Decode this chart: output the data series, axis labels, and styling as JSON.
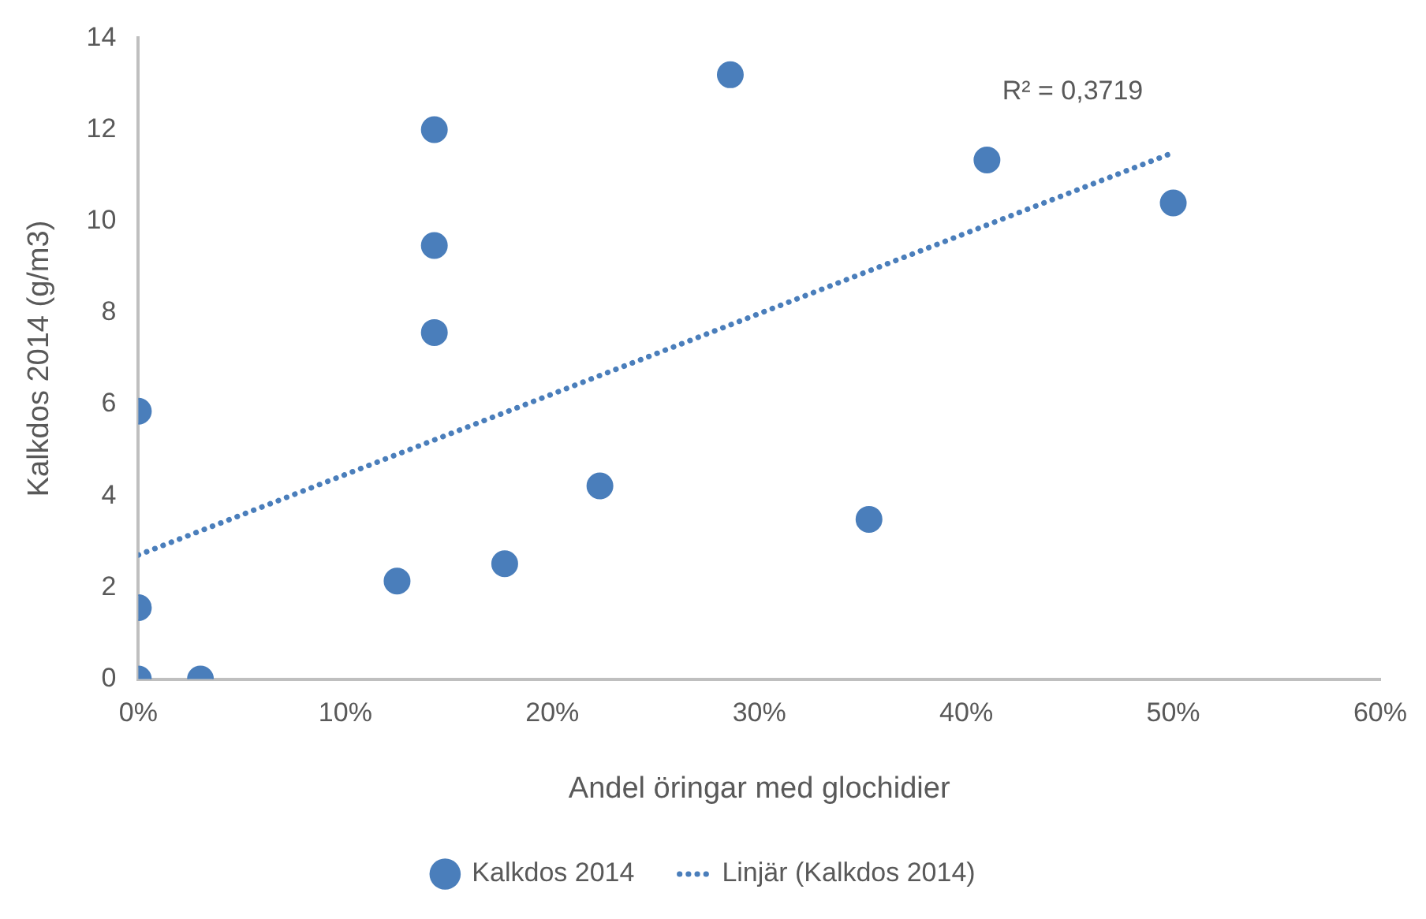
{
  "chart_data": {
    "type": "scatter",
    "xlabel": "Andel öringar med glochidier",
    "ylabel": "Kalkdos 2014 (g/m3)",
    "xlim": [
      0,
      60
    ],
    "xticks": [
      {
        "value": 0,
        "label": "0%"
      },
      {
        "value": 10,
        "label": "10%"
      },
      {
        "value": 20,
        "label": "20%"
      },
      {
        "value": 30,
        "label": "30%"
      },
      {
        "value": 40,
        "label": "40%"
      },
      {
        "value": 50,
        "label": "50%"
      },
      {
        "value": 60,
        "label": "60%"
      }
    ],
    "ylim": [
      0,
      14
    ],
    "yticks": [
      0,
      2,
      4,
      6,
      8,
      10,
      12,
      14
    ],
    "grid": false,
    "legend": "bottom",
    "series": [
      {
        "name": "Kalkdos 2014",
        "color": "#4a7ebb",
        "marker": "circle",
        "x": [
          0,
          0,
          0,
          3,
          12.5,
          14.3,
          14.3,
          14.3,
          17.7,
          22.3,
          28.6,
          35.3,
          41,
          50
        ],
        "values": [
          5.85,
          1.56,
          0,
          0,
          2.14,
          12,
          9.47,
          7.57,
          2.52,
          4.22,
          13.2,
          3.49,
          11.34,
          10.4
        ]
      },
      {
        "name": "Linjär (Kalkdos 2014)",
        "type": "line",
        "color": "#4a7ebb",
        "line_style": "dotted",
        "x": [
          0,
          50
        ],
        "values": [
          2.71,
          11.5
        ]
      }
    ],
    "annotations": [
      "R² = 0,3719"
    ]
  }
}
